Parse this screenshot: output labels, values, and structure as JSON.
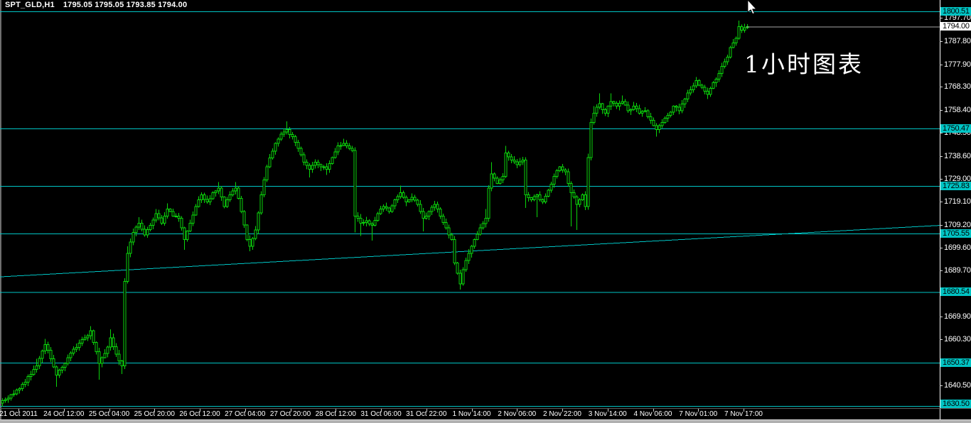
{
  "window": {
    "symbol_period": "SPT_GLD,H1",
    "ohlc_text": "1795.05 1795.05 1793.85 1794.00"
  },
  "annotation": {
    "text": "1小时图表"
  },
  "colors": {
    "background": "#000000",
    "candle": "#0bd50b",
    "level": "#00c4c4",
    "trendline": "#00c4c4",
    "current_price_line": "#a8a8a8",
    "axis_text": "#ffffff",
    "current_label_bg": "#ffffff",
    "frame": "#b0b0b0"
  },
  "y_axis": {
    "tick_labels": [
      "1797.70",
      "1787.80",
      "1777.90",
      "1768.30",
      "1758.40",
      "1748.50",
      "1738.60",
      "1729.00",
      "1719.10",
      "1709.20",
      "1699.60",
      "1689.70",
      "1669.90",
      "1660.30",
      "1640.50"
    ],
    "level_labels": [
      "1800.51",
      "1750.47",
      "1725.83",
      "1705.55",
      "1680.54",
      "1650.37",
      "1630.50"
    ],
    "current_label": "1794.00"
  },
  "x_axis": {
    "labels": [
      "21 Oct 2011",
      "24 Oct 12:00",
      "25 Oct 04:00",
      "25 Oct 20:00",
      "26 Oct 12:00",
      "27 Oct 04:00",
      "27 Oct 20:00",
      "28 Oct 12:00",
      "31 Oct 06:00",
      "31 Oct 22:00",
      "1 Nov 14:00",
      "2 Nov 06:00",
      "2 Nov 22:00",
      "3 Nov 14:00",
      "4 Nov 06:00",
      "7 Nov 01:00",
      "7 Nov 17:00"
    ]
  },
  "chart_data": {
    "type": "candlestick",
    "symbol": "SPT_GLD",
    "timeframe": "H1",
    "title": "SPT_GLD,H1",
    "last_bar": {
      "open": 1795.05,
      "high": 1795.05,
      "low": 1793.85,
      "close": 1794.0
    },
    "current_price": 1794.0,
    "ylim": [
      1629.4,
      1802.0
    ],
    "grid": false,
    "y_ticks": [
      1797.7,
      1787.8,
      1777.9,
      1768.3,
      1758.4,
      1748.5,
      1738.6,
      1729.0,
      1719.1,
      1709.2,
      1699.6,
      1689.7,
      1669.9,
      1660.3,
      1640.5
    ],
    "horizontal_levels": [
      1800.51,
      1750.47,
      1725.83,
      1705.55,
      1680.54,
      1650.37,
      1630.5
    ],
    "trendline": {
      "from_price": 1687.0,
      "to_price": 1709.0
    },
    "x_labels": [
      "21 Oct 2011",
      "24 Oct 12:00",
      "25 Oct 04:00",
      "25 Oct 20:00",
      "26 Oct 12:00",
      "27 Oct 04:00",
      "27 Oct 20:00",
      "28 Oct 12:00",
      "31 Oct 06:00",
      "31 Oct 22:00",
      "1 Nov 14:00",
      "2 Nov 06:00",
      "2 Nov 22:00",
      "3 Nov 14:00",
      "4 Nov 06:00",
      "7 Nov 01:00",
      "7 Nov 17:00"
    ],
    "candles": {
      "count": 263,
      "first_open": 1633.0,
      "waypoints": [
        [
          0,
          1634,
          null,
          1631.5
        ],
        [
          4,
          1637,
          null,
          null
        ],
        [
          8,
          1642,
          null,
          null
        ],
        [
          12,
          1649,
          1652,
          null
        ],
        [
          15,
          1658,
          1660.5,
          null
        ],
        [
          17,
          1652,
          null,
          null
        ],
        [
          19,
          1645,
          null,
          1640
        ],
        [
          22,
          1650,
          null,
          null
        ],
        [
          25,
          1656,
          null,
          null
        ],
        [
          29,
          1661,
          null,
          null
        ],
        [
          31,
          1664,
          1666,
          null
        ],
        [
          33,
          1655,
          null,
          null
        ],
        [
          34,
          1650,
          null,
          1643
        ],
        [
          37,
          1657,
          null,
          null
        ],
        [
          38,
          1661,
          1664.5,
          null
        ],
        [
          40,
          1654,
          null,
          null
        ],
        [
          42,
          1649,
          null,
          1645.5
        ],
        [
          43,
          1685,
          null,
          null
        ],
        [
          44,
          1697,
          1700,
          null
        ],
        [
          46,
          1706,
          null,
          null
        ],
        [
          48,
          1710,
          1712.5,
          null
        ],
        [
          50,
          1705,
          null,
          null
        ],
        [
          52,
          1709,
          null,
          null
        ],
        [
          54,
          1714,
          1716,
          null
        ],
        [
          56,
          1710,
          null,
          null
        ],
        [
          58,
          1716,
          1718.5,
          null
        ],
        [
          60,
          1713,
          null,
          null
        ],
        [
          62,
          1712,
          null,
          null
        ],
        [
          64,
          1703,
          null,
          1698.5
        ],
        [
          66,
          1710,
          null,
          null
        ],
        [
          68,
          1717,
          null,
          null
        ],
        [
          70,
          1722,
          null,
          null
        ],
        [
          72,
          1719,
          null,
          null
        ],
        [
          74,
          1723,
          null,
          null
        ],
        [
          76,
          1725,
          1727.5,
          null
        ],
        [
          78,
          1717,
          null,
          null
        ],
        [
          80,
          1722,
          null,
          null
        ],
        [
          82,
          1725,
          1727.5,
          null
        ],
        [
          84,
          1715,
          null,
          null
        ],
        [
          86,
          1703,
          null,
          null
        ],
        [
          87,
          1700,
          null,
          1698
        ],
        [
          89,
          1707,
          null,
          null
        ],
        [
          91,
          1722,
          null,
          null
        ],
        [
          93,
          1734,
          null,
          null
        ],
        [
          96,
          1744,
          null,
          null
        ],
        [
          98,
          1748,
          null,
          null
        ],
        [
          100,
          1750,
          1753.5,
          null
        ],
        [
          102,
          1747,
          null,
          null
        ],
        [
          104,
          1742,
          null,
          null
        ],
        [
          106,
          1736,
          null,
          null
        ],
        [
          108,
          1733,
          null,
          1729.5
        ],
        [
          110,
          1736,
          null,
          null
        ],
        [
          112,
          1734,
          null,
          null
        ],
        [
          114,
          1733,
          null,
          1730.5
        ],
        [
          116,
          1738,
          null,
          null
        ],
        [
          118,
          1743,
          null,
          null
        ],
        [
          120,
          1744,
          1746,
          null
        ],
        [
          122,
          1742,
          null,
          null
        ],
        [
          123,
          1741,
          null,
          null
        ],
        [
          124,
          1713,
          null,
          1706
        ],
        [
          126,
          1710,
          null,
          1704.5
        ],
        [
          128,
          1711,
          null,
          null
        ],
        [
          130,
          1709,
          null,
          1702.5
        ],
        [
          132,
          1714,
          null,
          null
        ],
        [
          134,
          1717,
          null,
          null
        ],
        [
          136,
          1715,
          null,
          null
        ],
        [
          138,
          1720,
          null,
          null
        ],
        [
          140,
          1723,
          1726,
          null
        ],
        [
          142,
          1719,
          null,
          null
        ],
        [
          144,
          1721,
          null,
          null
        ],
        [
          146,
          1718,
          null,
          null
        ],
        [
          148,
          1712,
          null,
          1706.5
        ],
        [
          150,
          1715,
          null,
          null
        ],
        [
          152,
          1718,
          null,
          null
        ],
        [
          154,
          1713,
          null,
          null
        ],
        [
          156,
          1708,
          null,
          null
        ],
        [
          158,
          1703,
          null,
          null
        ],
        [
          159,
          1693,
          null,
          null
        ],
        [
          161,
          1684,
          null,
          1681.5
        ],
        [
          162,
          1690,
          null,
          null
        ],
        [
          164,
          1697,
          null,
          null
        ],
        [
          166,
          1703,
          null,
          null
        ],
        [
          168,
          1708,
          null,
          null
        ],
        [
          170,
          1712,
          1716,
          null
        ],
        [
          171,
          1725,
          null,
          null
        ],
        [
          172,
          1731,
          1736,
          null
        ],
        [
          174,
          1727,
          null,
          null
        ],
        [
          176,
          1730,
          null,
          null
        ],
        [
          177,
          1740,
          1743,
          null
        ],
        [
          179,
          1737,
          null,
          null
        ],
        [
          181,
          1735,
          null,
          null
        ],
        [
          183,
          1737,
          null,
          null
        ],
        [
          184,
          1722,
          null,
          1716.5
        ],
        [
          186,
          1720,
          null,
          null
        ],
        [
          188,
          1722,
          null,
          1712.5
        ],
        [
          190,
          1719,
          null,
          null
        ],
        [
          192,
          1724,
          null,
          null
        ],
        [
          194,
          1730,
          null,
          null
        ],
        [
          196,
          1734,
          null,
          null
        ],
        [
          198,
          1732,
          null,
          null
        ],
        [
          200,
          1723,
          null,
          1708.5
        ],
        [
          202,
          1718,
          null,
          1707
        ],
        [
          203,
          1720,
          null,
          null
        ],
        [
          204,
          1722,
          null,
          null
        ],
        [
          205,
          1717,
          null,
          null
        ],
        [
          206,
          1738,
          null,
          null
        ],
        [
          207,
          1753,
          null,
          null
        ],
        [
          208,
          1757,
          1760,
          null
        ],
        [
          210,
          1761,
          1765.5,
          null
        ],
        [
          212,
          1757,
          null,
          null
        ],
        [
          214,
          1762,
          1765.5,
          null
        ],
        [
          216,
          1760,
          null,
          null
        ],
        [
          218,
          1762,
          1764.5,
          null
        ],
        [
          220,
          1758,
          null,
          null
        ],
        [
          222,
          1760,
          null,
          null
        ],
        [
          224,
          1757,
          null,
          null
        ],
        [
          226,
          1758,
          null,
          null
        ],
        [
          228,
          1754,
          null,
          null
        ],
        [
          230,
          1750,
          null,
          1747
        ],
        [
          232,
          1753,
          null,
          null
        ],
        [
          234,
          1756,
          null,
          null
        ],
        [
          236,
          1760,
          null,
          null
        ],
        [
          238,
          1758,
          null,
          null
        ],
        [
          240,
          1763,
          null,
          null
        ],
        [
          242,
          1767,
          null,
          null
        ],
        [
          244,
          1771,
          1772.5,
          null
        ],
        [
          246,
          1768,
          null,
          null
        ],
        [
          248,
          1765,
          null,
          1763
        ],
        [
          250,
          1770,
          null,
          null
        ],
        [
          252,
          1774,
          null,
          null
        ],
        [
          253,
          1777,
          null,
          null
        ],
        [
          255,
          1781,
          null,
          null
        ],
        [
          256,
          1785,
          null,
          null
        ],
        [
          258,
          1789,
          null,
          null
        ],
        [
          259,
          1794,
          1796.5,
          null
        ],
        [
          260,
          1792.5,
          null,
          null
        ],
        [
          261,
          1793.5,
          null,
          null
        ],
        [
          262,
          1794,
          1795,
          1793
        ]
      ]
    }
  }
}
